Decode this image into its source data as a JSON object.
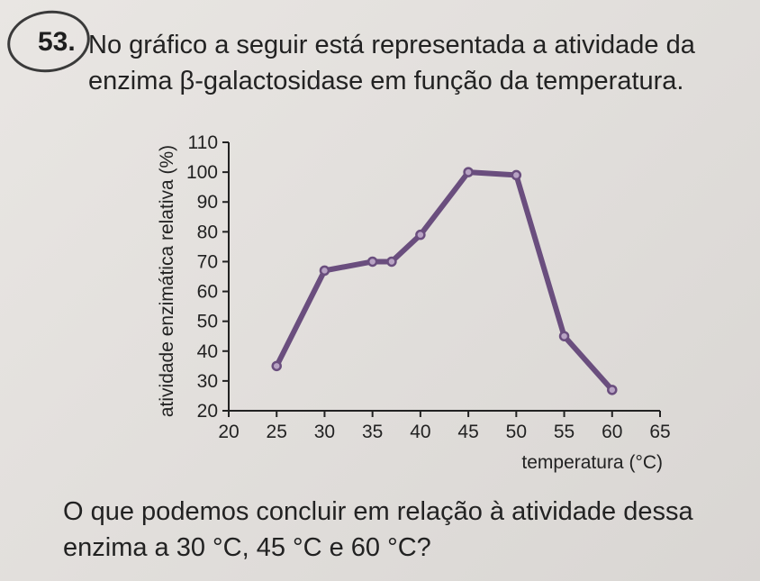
{
  "question": {
    "number": "53.",
    "text_line1": "No gráfico a seguir está representada a atividade da",
    "text_line2": "enzima β-galactosidase em função da temperatura."
  },
  "chart_data": {
    "type": "line",
    "xlabel": "temperatura (°C)",
    "ylabel": "atividade enzimática relativa (%)",
    "xlim": [
      20,
      65
    ],
    "ylim": [
      20,
      110
    ],
    "x_ticks": [
      20,
      25,
      30,
      35,
      40,
      45,
      50,
      55,
      60,
      65
    ],
    "y_ticks": [
      20,
      30,
      40,
      50,
      60,
      70,
      80,
      90,
      100,
      110
    ],
    "series": [
      {
        "x": [
          25,
          30,
          35,
          37,
          40,
          45,
          50,
          55,
          60
        ],
        "y": [
          35,
          67,
          70,
          70,
          79,
          100,
          99,
          45,
          27
        ]
      }
    ],
    "line_color": "#6a4e7e",
    "marker_fill": "#b8a3c4"
  },
  "conclusion": {
    "text_line1": "O que podemos concluir em relação à atividade dessa",
    "text_line2": "enzima a 30 °C, 45 °C e 60 °C?"
  }
}
